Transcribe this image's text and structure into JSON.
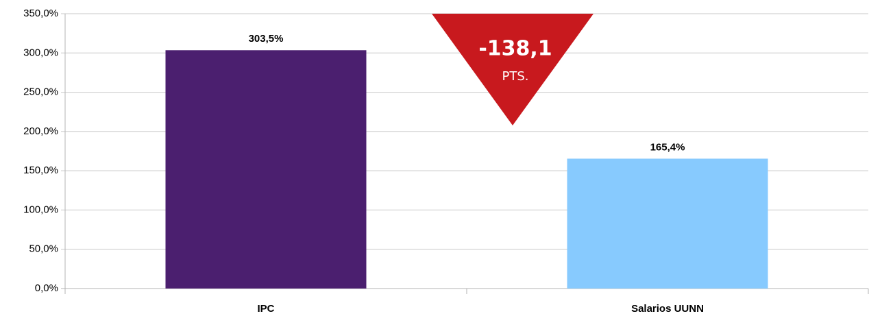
{
  "chart_data": {
    "type": "bar",
    "categories": [
      "IPC",
      "Salarios UUNN"
    ],
    "values": [
      303.5,
      165.4
    ],
    "value_labels": [
      "303,5%",
      "165,4%"
    ],
    "colors": [
      "#4b1f6f",
      "#87cafe"
    ],
    "ylim": [
      0,
      350
    ],
    "yticks": [
      {
        "value": 0,
        "label": "0,0%"
      },
      {
        "value": 50,
        "label": "50,0%"
      },
      {
        "value": 100,
        "label": "100,0%"
      },
      {
        "value": 150,
        "label": "150,0%"
      },
      {
        "value": 200,
        "label": "200,0%"
      },
      {
        "value": 250,
        "label": "250,0%"
      },
      {
        "value": 300,
        "label": "300,0%"
      },
      {
        "value": 350,
        "label": "350,0%"
      }
    ],
    "grid": true,
    "annotation": {
      "text": "-138,1",
      "unit": "PTS."
    }
  }
}
